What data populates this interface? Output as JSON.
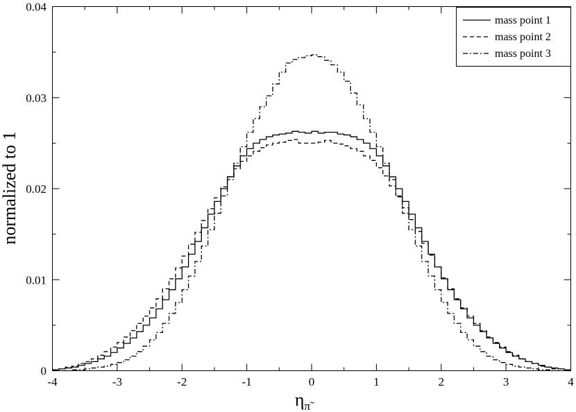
{
  "chart_data": {
    "type": "line",
    "step": true,
    "xlabel": "η",
    "xlabel_subscript": "π̃",
    "ylabel": "normalized to 1",
    "xlim": [
      -4,
      4
    ],
    "ylim": [
      0,
      0.04
    ],
    "xticks": [
      -4,
      -3,
      -2,
      -1,
      0,
      1,
      2,
      3,
      4
    ],
    "xtick_labels": [
      "-4",
      "-3",
      "-2",
      "-1",
      "0",
      "1",
      "2",
      "3",
      "4"
    ],
    "yticks": [
      0,
      0.01,
      0.02,
      0.03,
      0.04
    ],
    "ytick_labels": [
      "0",
      "0.01",
      "0.02",
      "0.03",
      "0.04"
    ],
    "grid": false,
    "legend_position": "top-right",
    "x": [
      -3.95,
      -3.85,
      -3.75,
      -3.65,
      -3.55,
      -3.45,
      -3.35,
      -3.25,
      -3.15,
      -3.05,
      -2.95,
      -2.85,
      -2.75,
      -2.65,
      -2.55,
      -2.45,
      -2.35,
      -2.25,
      -2.15,
      -2.05,
      -1.95,
      -1.85,
      -1.75,
      -1.65,
      -1.55,
      -1.45,
      -1.35,
      -1.25,
      -1.15,
      -1.05,
      -0.95,
      -0.85,
      -0.75,
      -0.65,
      -0.55,
      -0.45,
      -0.35,
      -0.25,
      -0.15,
      -0.05,
      0.05,
      0.15,
      0.25,
      0.35,
      0.45,
      0.55,
      0.65,
      0.75,
      0.85,
      0.95,
      1.05,
      1.15,
      1.25,
      1.35,
      1.45,
      1.55,
      1.65,
      1.75,
      1.85,
      1.95,
      2.05,
      2.15,
      2.25,
      2.35,
      2.45,
      2.55,
      2.65,
      2.75,
      2.85,
      2.95,
      3.05,
      3.15,
      3.25,
      3.35,
      3.45,
      3.55,
      3.65,
      3.75,
      3.85,
      3.95
    ],
    "series": [
      {
        "name": "mass point 1",
        "dash": "solid",
        "values": [
          0.0001,
          0.0002,
          0.0003,
          0.0004,
          0.0006,
          0.0008,
          0.001,
          0.0013,
          0.0016,
          0.002,
          0.0025,
          0.003,
          0.0036,
          0.0043,
          0.005,
          0.0058,
          0.0068,
          0.0078,
          0.0089,
          0.0101,
          0.0114,
          0.0128,
          0.0142,
          0.0157,
          0.0172,
          0.0186,
          0.02,
          0.0213,
          0.0225,
          0.0236,
          0.0244,
          0.025,
          0.0254,
          0.0257,
          0.0259,
          0.026,
          0.0261,
          0.0263,
          0.0262,
          0.0261,
          0.0263,
          0.0261,
          0.0262,
          0.0262,
          0.026,
          0.0259,
          0.0257,
          0.0254,
          0.025,
          0.0244,
          0.0236,
          0.0225,
          0.0213,
          0.02,
          0.0186,
          0.0172,
          0.0157,
          0.0142,
          0.0128,
          0.0114,
          0.0101,
          0.0089,
          0.0078,
          0.0068,
          0.0058,
          0.005,
          0.0043,
          0.0036,
          0.003,
          0.0025,
          0.002,
          0.0016,
          0.0013,
          0.001,
          0.0008,
          0.0006,
          0.0004,
          0.0003,
          0.0002,
          0.0001
        ]
      },
      {
        "name": "mass point 2",
        "dash": "dashed",
        "values": [
          0.0001,
          0.0002,
          0.0004,
          0.0005,
          0.0008,
          0.001,
          0.0013,
          0.0017,
          0.0021,
          0.0026,
          0.0031,
          0.0037,
          0.0044,
          0.0052,
          0.006,
          0.0069,
          0.0079,
          0.009,
          0.0101,
          0.0113,
          0.0126,
          0.0139,
          0.0152,
          0.0165,
          0.0178,
          0.019,
          0.0202,
          0.0213,
          0.0222,
          0.023,
          0.0236,
          0.0241,
          0.0245,
          0.0248,
          0.025,
          0.0251,
          0.0253,
          0.0254,
          0.025,
          0.025,
          0.025,
          0.0251,
          0.0253,
          0.025,
          0.0249,
          0.0247,
          0.0244,
          0.0241,
          0.0236,
          0.0231,
          0.0223,
          0.0214,
          0.0203,
          0.0191,
          0.0179,
          0.0166,
          0.0153,
          0.014,
          0.0127,
          0.0114,
          0.0102,
          0.009,
          0.0079,
          0.0069,
          0.006,
          0.0052,
          0.0044,
          0.0037,
          0.0031,
          0.0026,
          0.0021,
          0.0017,
          0.0013,
          0.001,
          0.0008,
          0.0005,
          0.0004,
          0.0002,
          0.0002,
          0.0001
        ]
      },
      {
        "name": "mass point 3",
        "dash": "dashdot",
        "values": [
          0,
          0,
          0,
          0.0001,
          0.0001,
          0.0002,
          0.0003,
          0.0004,
          0.0005,
          0.0007,
          0.0009,
          0.0012,
          0.0016,
          0.0021,
          0.0027,
          0.0034,
          0.0042,
          0.0052,
          0.0063,
          0.0075,
          0.0089,
          0.0104,
          0.012,
          0.0137,
          0.0155,
          0.0173,
          0.0192,
          0.021,
          0.0228,
          0.0246,
          0.0262,
          0.0277,
          0.029,
          0.0302,
          0.0315,
          0.0328,
          0.0338,
          0.0342,
          0.0344,
          0.0346,
          0.0347,
          0.0345,
          0.0341,
          0.0336,
          0.0328,
          0.0318,
          0.0305,
          0.0292,
          0.0277,
          0.0262,
          0.0246,
          0.0228,
          0.021,
          0.0192,
          0.0173,
          0.0155,
          0.0137,
          0.012,
          0.0104,
          0.0089,
          0.0075,
          0.0063,
          0.0052,
          0.0042,
          0.0034,
          0.0027,
          0.0021,
          0.0016,
          0.0012,
          0.0009,
          0.0007,
          0.0005,
          0.0004,
          0.0003,
          0.0002,
          0.0001,
          0.0001,
          0,
          0,
          0
        ]
      }
    ]
  }
}
